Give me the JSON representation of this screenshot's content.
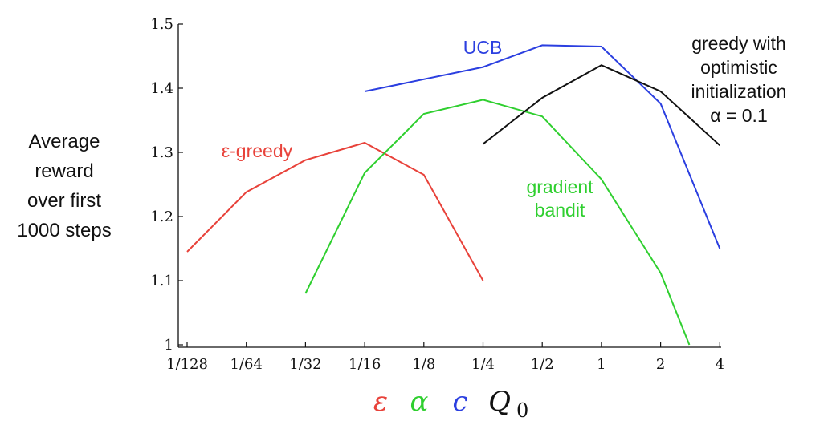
{
  "chart_data": {
    "type": "line",
    "categories": [
      "1/128",
      "1/64",
      "1/32",
      "1/16",
      "1/8",
      "1/4",
      "1/2",
      "1",
      "2",
      "4"
    ],
    "ylabel": [
      "Average",
      "reward",
      "over first",
      "1000 steps"
    ],
    "yticks": [
      "1",
      "1.1",
      "1.2",
      "1.3",
      "1.4",
      "1.5"
    ],
    "ylim": [
      1.0,
      1.5
    ],
    "grid": false,
    "xlabel_params": [
      {
        "text": "ε",
        "color": "#e8423a"
      },
      {
        "text": "α",
        "color": "#2fcf2f"
      },
      {
        "text": "c",
        "color": "#2b3fe0"
      },
      {
        "text": "Q",
        "sub": "0",
        "color": "#111111"
      }
    ],
    "series": [
      {
        "name": "ε-greedy",
        "color": "#e8423a",
        "label_lines": [
          "ε-greedy"
        ],
        "points": [
          {
            "x": "1/128",
            "y": 1.145
          },
          {
            "x": "1/64",
            "y": 1.238
          },
          {
            "x": "1/32",
            "y": 1.288
          },
          {
            "x": "1/16",
            "y": 1.315
          },
          {
            "x": "1/8",
            "y": 1.265
          },
          {
            "x": "1/4",
            "y": 1.1
          }
        ]
      },
      {
        "name": "gradient bandit",
        "color": "#2fcf2f",
        "label_lines": [
          "gradient",
          "bandit"
        ],
        "points": [
          {
            "x": "1/32",
            "y": 1.08
          },
          {
            "x": "1/16",
            "y": 1.268
          },
          {
            "x": "1/8",
            "y": 1.36
          },
          {
            "x": "1/4",
            "y": 1.382
          },
          {
            "x": "1/2",
            "y": 1.356
          },
          {
            "x": "1",
            "y": 1.258
          },
          {
            "x": "2",
            "y": 1.112
          },
          {
            "x": "2.8",
            "y": 1.0
          }
        ]
      },
      {
        "name": "UCB",
        "color": "#2b3fe0",
        "label_lines": [
          "UCB"
        ],
        "points": [
          {
            "x": "1/16",
            "y": 1.395
          },
          {
            "x": "1/4",
            "y": 1.433
          },
          {
            "x": "1/2",
            "y": 1.467
          },
          {
            "x": "1",
            "y": 1.465
          },
          {
            "x": "2",
            "y": 1.376
          },
          {
            "x": "4",
            "y": 1.15
          }
        ]
      },
      {
        "name": "greedy with optimistic initialization α = 0.1",
        "color": "#111111",
        "label_lines": [
          "greedy with",
          "optimistic",
          "initialization",
          "α = 0.1"
        ],
        "points": [
          {
            "x": "1/4",
            "y": 1.313
          },
          {
            "x": "1/2",
            "y": 1.385
          },
          {
            "x": "1",
            "y": 1.436
          },
          {
            "x": "2",
            "y": 1.395
          },
          {
            "x": "4",
            "y": 1.311
          }
        ]
      }
    ]
  }
}
